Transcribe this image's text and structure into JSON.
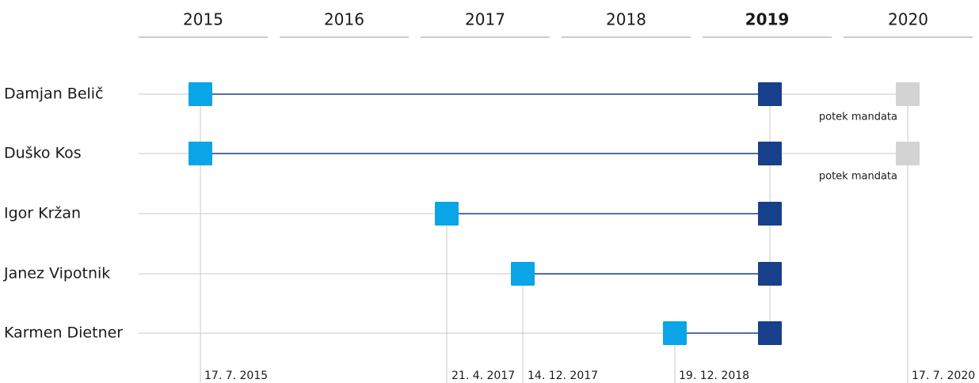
{
  "years": [
    "2015",
    "2016",
    "2017",
    "2018",
    "2019",
    "2020"
  ],
  "highlighted_year": 4,
  "people": [
    {
      "name": "Damjan Belič",
      "note": "potek mandata"
    },
    {
      "name": "Duško Kos",
      "note": "potek mandata"
    },
    {
      "name": "Igor Kržan"
    },
    {
      "name": "Janez Vipotnik"
    },
    {
      "name": "Karmen Dietner"
    }
  ],
  "dates": [
    "17. 7. 2015",
    "21. 4. 2017",
    "14. 12. 2017",
    "19. 12. 2018",
    "17. 7. 2020"
  ]
}
